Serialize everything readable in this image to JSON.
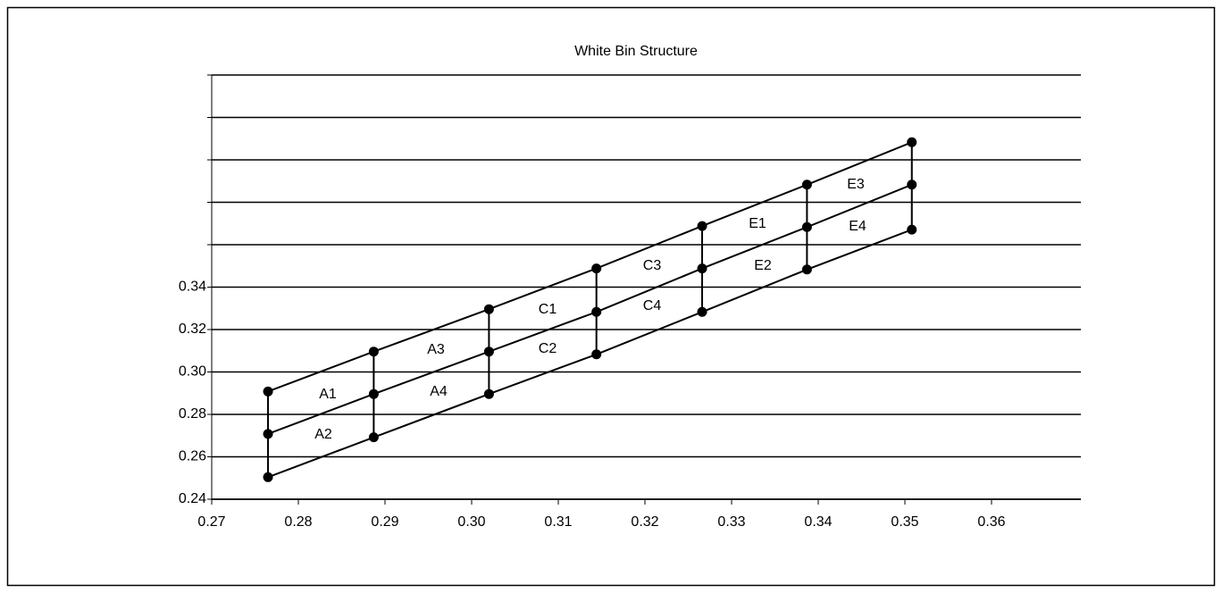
{
  "chart_data": {
    "type": "line",
    "title": "White Bin Structure",
    "x": [
      0.2765,
      0.2887,
      0.302,
      0.3144,
      0.3266,
      0.3387,
      0.3508
    ],
    "series": [
      {
        "color": "#000000",
        "values": [
          0.2908,
          0.3096,
          0.3296,
          0.3488,
          0.3688,
          0.3883,
          0.4083
        ]
      },
      {
        "color": "#000000",
        "values": [
          0.2708,
          0.2896,
          0.3096,
          0.3283,
          0.3488,
          0.3683,
          0.3883
        ]
      },
      {
        "color": "#000000",
        "values": [
          0.2504,
          0.2692,
          0.2896,
          0.3083,
          0.3283,
          0.3483,
          0.3671
        ]
      }
    ],
    "bin_labels": [
      "A1",
      "A2",
      "A3",
      "A4",
      "C1",
      "C2",
      "C3",
      "C4",
      "E1",
      "E2",
      "E3",
      "E4"
    ],
    "xlim": [
      0.27,
      0.37
    ],
    "xticks": [
      0.27,
      0.28,
      0.29,
      {
        "value": 0.3,
        "label": "0.30"
      },
      0.31,
      0.32,
      0.33,
      0.34,
      0.35,
      0.36
    ],
    "ylim": [
      0.24,
      0.44
    ],
    "yticks": [
      0.24,
      0.26,
      0.28,
      {
        "value": 0.3,
        "label": "0.30"
      },
      0.32,
      0.34,
      {
        "value": 0.36,
        "label": null
      },
      {
        "value": 0.38,
        "label": null
      },
      {
        "value": 0.4,
        "label": null
      },
      {
        "value": 0.42,
        "label": null
      },
      {
        "value": 0.44,
        "label": null
      }
    ],
    "grid": true
  }
}
